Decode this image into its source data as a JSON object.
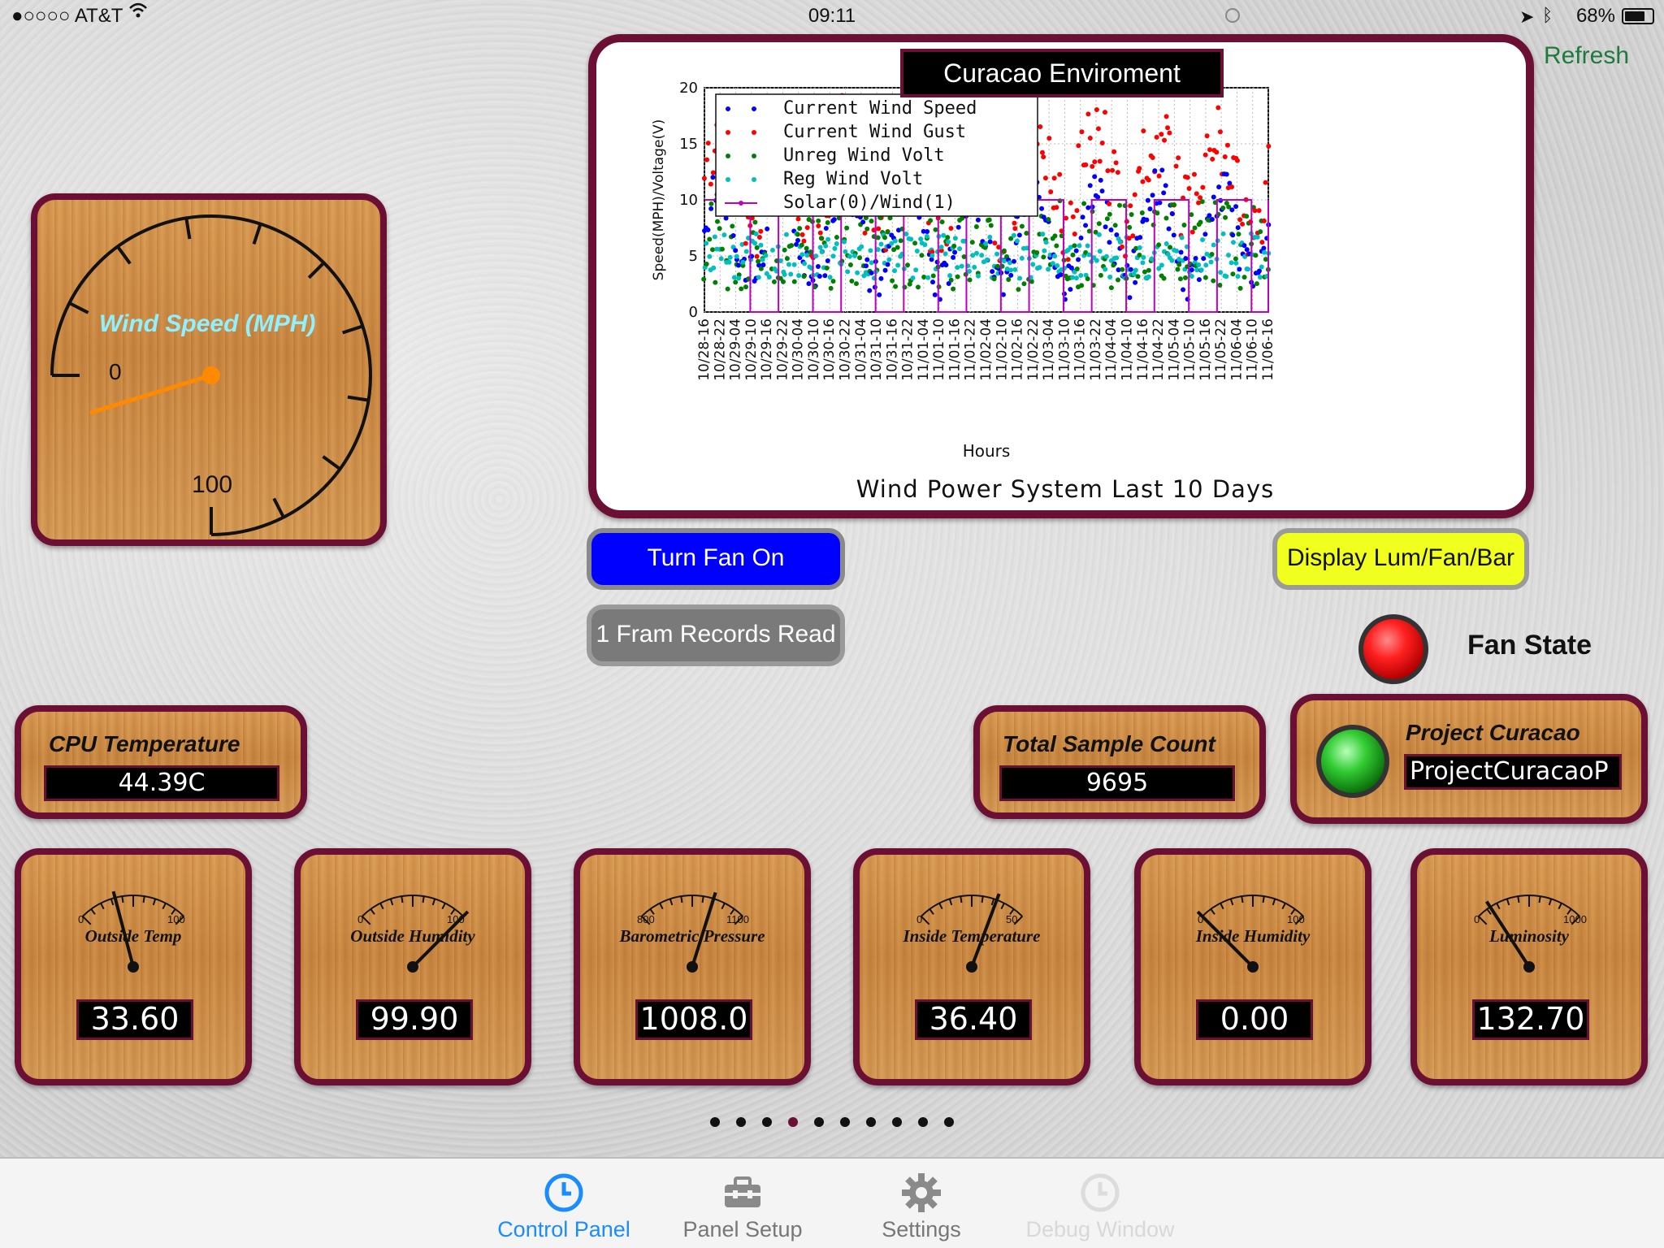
{
  "status_bar": {
    "carrier": "●○○○○ AT&T",
    "time": "09:11",
    "battery": "68%"
  },
  "wind_gauge": {
    "title": "Wind Speed (MPH)",
    "min_label": "0",
    "max_label": "100",
    "value_fraction": 0.0
  },
  "chart_panel": {
    "title": "Curacao Enviroment",
    "refresh_label": "Refresh"
  },
  "chart_data": {
    "type": "scatter",
    "title": "Wind Power System Last 10 Days",
    "xlabel": "Hours",
    "ylabel": "Speed(MPH)/Voltage(V)",
    "ylim": [
      0,
      20
    ],
    "yticks": [
      "0",
      "5",
      "10",
      "15",
      "20"
    ],
    "categories": [
      "10/28-16",
      "10/28-22",
      "10/29-04",
      "10/29-10",
      "10/29-16",
      "10/29-22",
      "10/30-04",
      "10/30-10",
      "10/30-16",
      "10/30-22",
      "10/31-04",
      "10/31-10",
      "10/31-16",
      "10/31-22",
      "11/01-04",
      "11/01-10",
      "11/01-16",
      "11/01-22",
      "11/02-04",
      "11/02-10",
      "11/02-16",
      "11/02-22",
      "11/03-04",
      "11/03-10",
      "11/03-16",
      "11/03-22",
      "11/04-04",
      "11/04-10",
      "11/04-16",
      "11/04-22",
      "11/05-04",
      "11/05-10",
      "11/05-16",
      "11/05-22",
      "11/06-04",
      "11/06-10",
      "11/06-16"
    ],
    "grid": true,
    "legend_position": "top-left",
    "series": [
      {
        "name": "Current Wind Speed",
        "color": "#0000ff",
        "marker": "dot"
      },
      {
        "name": "Current Wind Gust",
        "color": "#ff0000",
        "marker": "dot"
      },
      {
        "name": "Unreg Wind Volt",
        "color": "#008000",
        "marker": "dot"
      },
      {
        "name": "Reg Wind Volt",
        "color": "#00bfbf",
        "marker": "dot"
      },
      {
        "name": "Solar(0)/Wind(1)",
        "color": "#bf00bf",
        "marker": "line"
      }
    ]
  },
  "buttons": {
    "fan": "Turn Fan On",
    "fram": "1 Fram Records Read",
    "display": "Display Lum/Fan/Bar"
  },
  "fan_state": {
    "label": "Fan State",
    "color": "#ff0000"
  },
  "cpu": {
    "title": "CPU Temperature",
    "value": "44.39C"
  },
  "sample_count": {
    "title": "Total Sample Count",
    "value": "9695"
  },
  "project": {
    "title": "Project Curacao",
    "value": "ProjectCuracaoP",
    "led_color": "#22aa22"
  },
  "meters": [
    {
      "title": "Outside Temp",
      "min": "0",
      "max": "100",
      "value": "33.60",
      "fraction": 0.336
    },
    {
      "title": "Outside Humidity",
      "min": "0",
      "max": "100",
      "value": "99.90",
      "fraction": 0.999
    },
    {
      "title": "Barometric Pressure",
      "min": "800",
      "max": "1100",
      "value": "1008.0",
      "fraction": 0.693
    },
    {
      "title": "Inside Temperature",
      "min": "0",
      "max": "50",
      "value": "36.40",
      "fraction": 0.728
    },
    {
      "title": "Inside Humidity",
      "min": "0",
      "max": "100",
      "value": "0.00",
      "fraction": 0.0
    },
    {
      "title": "Luminosity",
      "min": "0",
      "max": "1000",
      "value": "132.70",
      "fraction": 0.133
    }
  ],
  "page_indicator": {
    "count": 10,
    "active": 3
  },
  "tabs": [
    {
      "label": "Control Panel",
      "icon": "clock-icon",
      "active": true
    },
    {
      "label": "Panel Setup",
      "icon": "toolbox-icon",
      "active": false
    },
    {
      "label": "Settings",
      "icon": "gear-icon",
      "active": false
    },
    {
      "label": "Debug Window",
      "icon": "clock-icon",
      "active": false,
      "disabled": true
    }
  ],
  "colors": {
    "frame": "#6b1034",
    "accent_blue": "#1a8cff",
    "fan_button": "#0000ff",
    "display_button": "#f0ff1e",
    "refresh": "#1f7a3c"
  }
}
